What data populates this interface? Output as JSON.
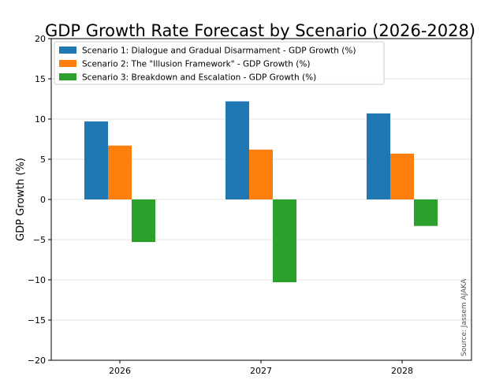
{
  "chart_data": {
    "type": "bar",
    "title": "GDP Growth Rate Forecast by Scenario (2026-2028)",
    "xlabel": "",
    "ylabel": "GDP Growth (%)",
    "categories": [
      "2026",
      "2027",
      "2028"
    ],
    "ylim": [
      -20,
      20
    ],
    "yticks": [
      "−20",
      "−15",
      "−10",
      "−5",
      "0",
      "5",
      "10",
      "15",
      "20"
    ],
    "ytick_values": [
      -20,
      -15,
      -10,
      -5,
      0,
      5,
      10,
      15,
      20
    ],
    "grid": true,
    "legend_position": "top-left",
    "source_note": "Source: Jassem AJAKA",
    "series": [
      {
        "name": "Scenario 1: Dialogue and Gradual Disarmament - GDP Growth (%)",
        "color": "#1f77b4",
        "values": [
          9.7,
          12.2,
          10.7
        ]
      },
      {
        "name": "Scenario 2: The \"Illusion Framework\" - GDP Growth (%)",
        "color": "#ff7f0e",
        "values": [
          6.7,
          6.2,
          5.7
        ]
      },
      {
        "name": "Scenario 3: Breakdown and Escalation - GDP Growth (%)",
        "color": "#2ca02c",
        "values": [
          -5.3,
          -10.3,
          -3.3
        ]
      }
    ]
  }
}
